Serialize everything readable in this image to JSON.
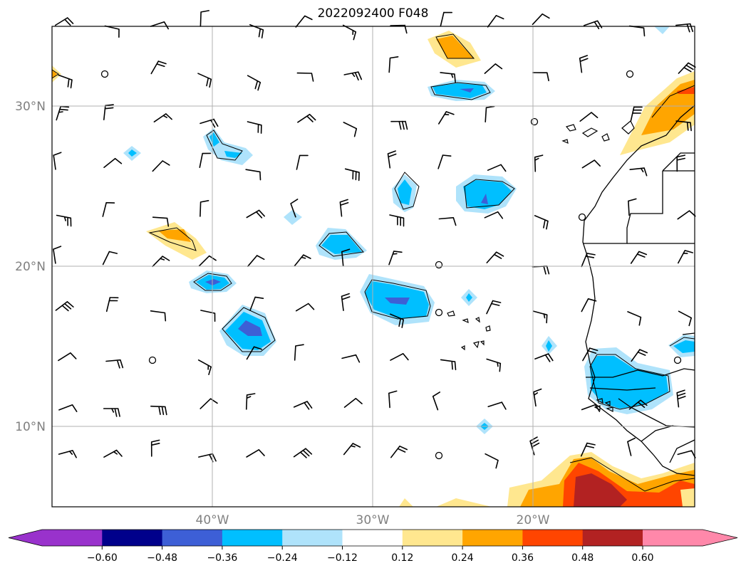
{
  "title": "2022092400 F048",
  "map": {
    "lat_labels": [
      "30°N",
      "20°N",
      "10°N"
    ],
    "lon_labels": [
      "40°W",
      "30°W",
      "20°W"
    ],
    "gridlines": true
  },
  "colorbar": {
    "ticks": [
      "−0.60",
      "−0.48",
      "−0.36",
      "−0.24",
      "−0.12",
      "0.12",
      "0.24",
      "0.36",
      "0.48",
      "0.60"
    ],
    "colors": [
      "#9932cc",
      "#00008b",
      "#3d5fd6",
      "#00bfff",
      "#afe3fb",
      "#ffffff",
      "#ffe78f",
      "#ffa500",
      "#ff4500",
      "#b22222",
      "#ff88aa"
    ],
    "under_color": "#9932cc",
    "over_color": "#ff88aa"
  }
}
